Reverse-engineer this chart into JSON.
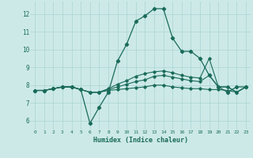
{
  "xlabel": "Humidex (Indice chaleur)",
  "xlim": [
    -0.5,
    23.5
  ],
  "ylim": [
    5.5,
    12.7
  ],
  "yticks": [
    6,
    7,
    8,
    9,
    10,
    11,
    12
  ],
  "xticks": [
    0,
    1,
    2,
    3,
    4,
    5,
    6,
    7,
    8,
    9,
    10,
    11,
    12,
    13,
    14,
    15,
    16,
    17,
    18,
    19,
    20,
    21,
    22,
    23
  ],
  "bg_color": "#cce9e8",
  "grid_color": "#aad4d3",
  "line_color": "#1a6b5a",
  "line1_y": [
    7.7,
    7.7,
    7.8,
    7.9,
    7.9,
    7.75,
    5.85,
    6.75,
    7.6,
    9.35,
    10.3,
    11.6,
    11.9,
    12.3,
    12.3,
    10.65,
    9.9,
    9.9,
    9.5,
    8.55,
    7.9,
    7.6,
    7.9,
    7.9
  ],
  "line2_y": [
    7.7,
    7.7,
    7.8,
    7.9,
    7.9,
    7.75,
    7.6,
    7.6,
    7.8,
    8.05,
    8.25,
    8.5,
    8.65,
    8.75,
    8.8,
    8.7,
    8.55,
    8.45,
    8.4,
    9.5,
    7.9,
    7.9,
    7.6,
    7.9
  ],
  "line3_y": [
    7.7,
    7.7,
    7.8,
    7.9,
    7.9,
    7.75,
    7.6,
    7.6,
    7.75,
    7.9,
    8.05,
    8.2,
    8.3,
    8.5,
    8.55,
    8.45,
    8.35,
    8.25,
    8.2,
    8.55,
    7.9,
    7.9,
    7.6,
    7.9
  ],
  "line4_y": [
    7.7,
    7.7,
    7.8,
    7.9,
    7.9,
    7.75,
    7.6,
    7.6,
    7.7,
    7.75,
    7.8,
    7.85,
    7.9,
    8.0,
    8.0,
    7.9,
    7.85,
    7.8,
    7.8,
    7.75,
    7.75,
    7.7,
    7.6,
    7.9
  ]
}
